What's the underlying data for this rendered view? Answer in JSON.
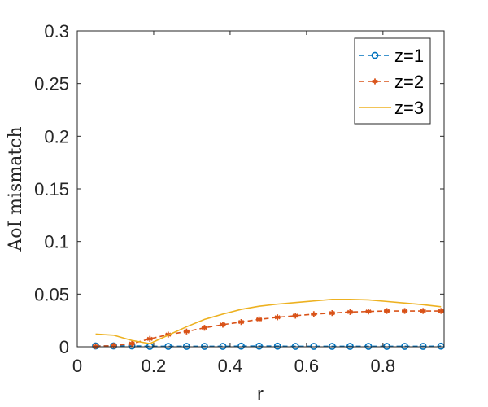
{
  "chart_data": {
    "type": "line",
    "title": "",
    "xlabel": "r",
    "ylabel": "AoI mismatch",
    "xlim": [
      0,
      0.96
    ],
    "ylim": [
      0,
      0.3
    ],
    "xticks": [
      0,
      0.2,
      0.4,
      0.6,
      0.8
    ],
    "xtick_labels": [
      "0",
      "0.2",
      "0.4",
      "0.6",
      "0.8"
    ],
    "yticks": [
      0,
      0.05,
      0.1,
      0.15,
      0.2,
      0.25,
      0.3
    ],
    "ytick_labels": [
      "0",
      "0.05",
      "0.1",
      "0.15",
      "0.2",
      "0.25",
      "0.3"
    ],
    "grid": false,
    "legend_position": "top-right",
    "series": [
      {
        "name": "z=1",
        "color": "#0072BD",
        "line_style": "dashed",
        "marker": "circle",
        "x": [
          0.048,
          0.095,
          0.143,
          0.19,
          0.238,
          0.286,
          0.333,
          0.381,
          0.429,
          0.476,
          0.524,
          0.571,
          0.619,
          0.667,
          0.714,
          0.762,
          0.81,
          0.857,
          0.905,
          0.952
        ],
        "y": [
          0.0008,
          0.0008,
          0.0008,
          0.0004,
          0.0004,
          0.0004,
          0.0004,
          0.0004,
          0.0006,
          0.0006,
          0.0006,
          0.0004,
          0.0004,
          0.0004,
          0.0004,
          0.0004,
          0.0004,
          0.0004,
          0.0004,
          0.0006
        ]
      },
      {
        "name": "z=2",
        "color": "#D95319",
        "line_style": "dashed",
        "marker": "asterisk",
        "x": [
          0.048,
          0.095,
          0.143,
          0.19,
          0.238,
          0.286,
          0.333,
          0.381,
          0.429,
          0.476,
          0.524,
          0.571,
          0.619,
          0.667,
          0.714,
          0.762,
          0.81,
          0.857,
          0.905,
          0.952
        ],
        "y": [
          0.0005,
          0.001,
          0.003,
          0.0075,
          0.0115,
          0.0145,
          0.018,
          0.021,
          0.0235,
          0.026,
          0.028,
          0.0295,
          0.031,
          0.032,
          0.033,
          0.0335,
          0.034,
          0.034,
          0.034,
          0.034
        ]
      },
      {
        "name": "z=3",
        "color": "#EDB120",
        "line_style": "solid",
        "marker": "none",
        "x": [
          0.048,
          0.095,
          0.143,
          0.19,
          0.238,
          0.286,
          0.333,
          0.381,
          0.429,
          0.476,
          0.524,
          0.571,
          0.619,
          0.667,
          0.714,
          0.762,
          0.81,
          0.857,
          0.905,
          0.952
        ],
        "y": [
          0.012,
          0.011,
          0.006,
          0.003,
          0.011,
          0.019,
          0.026,
          0.031,
          0.0355,
          0.0385,
          0.0405,
          0.042,
          0.0435,
          0.045,
          0.045,
          0.0445,
          0.043,
          0.0415,
          0.04,
          0.038
        ]
      }
    ]
  }
}
